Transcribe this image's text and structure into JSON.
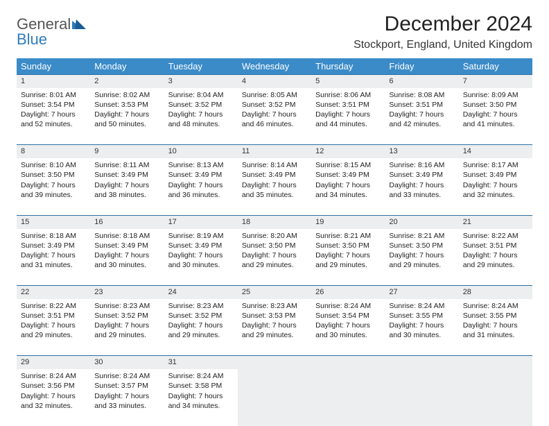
{
  "brand": {
    "general": "General",
    "blue": "Blue"
  },
  "title": "December 2024",
  "location": "Stockport, England, United Kingdom",
  "colors": {
    "header_bg": "#3b8bc9",
    "header_text": "#ffffff",
    "row_border": "#2f6fa3",
    "daynum_bg": "#eceeef",
    "logo_gray": "#555555",
    "logo_blue": "#2f7bbf"
  },
  "weekdays": [
    "Sunday",
    "Monday",
    "Tuesday",
    "Wednesday",
    "Thursday",
    "Friday",
    "Saturday"
  ],
  "weeks": [
    {
      "days": [
        {
          "n": "1",
          "sr": "Sunrise: 8:01 AM",
          "ss": "Sunset: 3:54 PM",
          "d1": "Daylight: 7 hours",
          "d2": "and 52 minutes."
        },
        {
          "n": "2",
          "sr": "Sunrise: 8:02 AM",
          "ss": "Sunset: 3:53 PM",
          "d1": "Daylight: 7 hours",
          "d2": "and 50 minutes."
        },
        {
          "n": "3",
          "sr": "Sunrise: 8:04 AM",
          "ss": "Sunset: 3:52 PM",
          "d1": "Daylight: 7 hours",
          "d2": "and 48 minutes."
        },
        {
          "n": "4",
          "sr": "Sunrise: 8:05 AM",
          "ss": "Sunset: 3:52 PM",
          "d1": "Daylight: 7 hours",
          "d2": "and 46 minutes."
        },
        {
          "n": "5",
          "sr": "Sunrise: 8:06 AM",
          "ss": "Sunset: 3:51 PM",
          "d1": "Daylight: 7 hours",
          "d2": "and 44 minutes."
        },
        {
          "n": "6",
          "sr": "Sunrise: 8:08 AM",
          "ss": "Sunset: 3:51 PM",
          "d1": "Daylight: 7 hours",
          "d2": "and 42 minutes."
        },
        {
          "n": "7",
          "sr": "Sunrise: 8:09 AM",
          "ss": "Sunset: 3:50 PM",
          "d1": "Daylight: 7 hours",
          "d2": "and 41 minutes."
        }
      ]
    },
    {
      "days": [
        {
          "n": "8",
          "sr": "Sunrise: 8:10 AM",
          "ss": "Sunset: 3:50 PM",
          "d1": "Daylight: 7 hours",
          "d2": "and 39 minutes."
        },
        {
          "n": "9",
          "sr": "Sunrise: 8:11 AM",
          "ss": "Sunset: 3:49 PM",
          "d1": "Daylight: 7 hours",
          "d2": "and 38 minutes."
        },
        {
          "n": "10",
          "sr": "Sunrise: 8:13 AM",
          "ss": "Sunset: 3:49 PM",
          "d1": "Daylight: 7 hours",
          "d2": "and 36 minutes."
        },
        {
          "n": "11",
          "sr": "Sunrise: 8:14 AM",
          "ss": "Sunset: 3:49 PM",
          "d1": "Daylight: 7 hours",
          "d2": "and 35 minutes."
        },
        {
          "n": "12",
          "sr": "Sunrise: 8:15 AM",
          "ss": "Sunset: 3:49 PM",
          "d1": "Daylight: 7 hours",
          "d2": "and 34 minutes."
        },
        {
          "n": "13",
          "sr": "Sunrise: 8:16 AM",
          "ss": "Sunset: 3:49 PM",
          "d1": "Daylight: 7 hours",
          "d2": "and 33 minutes."
        },
        {
          "n": "14",
          "sr": "Sunrise: 8:17 AM",
          "ss": "Sunset: 3:49 PM",
          "d1": "Daylight: 7 hours",
          "d2": "and 32 minutes."
        }
      ]
    },
    {
      "days": [
        {
          "n": "15",
          "sr": "Sunrise: 8:18 AM",
          "ss": "Sunset: 3:49 PM",
          "d1": "Daylight: 7 hours",
          "d2": "and 31 minutes."
        },
        {
          "n": "16",
          "sr": "Sunrise: 8:18 AM",
          "ss": "Sunset: 3:49 PM",
          "d1": "Daylight: 7 hours",
          "d2": "and 30 minutes."
        },
        {
          "n": "17",
          "sr": "Sunrise: 8:19 AM",
          "ss": "Sunset: 3:49 PM",
          "d1": "Daylight: 7 hours",
          "d2": "and 30 minutes."
        },
        {
          "n": "18",
          "sr": "Sunrise: 8:20 AM",
          "ss": "Sunset: 3:50 PM",
          "d1": "Daylight: 7 hours",
          "d2": "and 29 minutes."
        },
        {
          "n": "19",
          "sr": "Sunrise: 8:21 AM",
          "ss": "Sunset: 3:50 PM",
          "d1": "Daylight: 7 hours",
          "d2": "and 29 minutes."
        },
        {
          "n": "20",
          "sr": "Sunrise: 8:21 AM",
          "ss": "Sunset: 3:50 PM",
          "d1": "Daylight: 7 hours",
          "d2": "and 29 minutes."
        },
        {
          "n": "21",
          "sr": "Sunrise: 8:22 AM",
          "ss": "Sunset: 3:51 PM",
          "d1": "Daylight: 7 hours",
          "d2": "and 29 minutes."
        }
      ]
    },
    {
      "days": [
        {
          "n": "22",
          "sr": "Sunrise: 8:22 AM",
          "ss": "Sunset: 3:51 PM",
          "d1": "Daylight: 7 hours",
          "d2": "and 29 minutes."
        },
        {
          "n": "23",
          "sr": "Sunrise: 8:23 AM",
          "ss": "Sunset: 3:52 PM",
          "d1": "Daylight: 7 hours",
          "d2": "and 29 minutes."
        },
        {
          "n": "24",
          "sr": "Sunrise: 8:23 AM",
          "ss": "Sunset: 3:52 PM",
          "d1": "Daylight: 7 hours",
          "d2": "and 29 minutes."
        },
        {
          "n": "25",
          "sr": "Sunrise: 8:23 AM",
          "ss": "Sunset: 3:53 PM",
          "d1": "Daylight: 7 hours",
          "d2": "and 29 minutes."
        },
        {
          "n": "26",
          "sr": "Sunrise: 8:24 AM",
          "ss": "Sunset: 3:54 PM",
          "d1": "Daylight: 7 hours",
          "d2": "and 30 minutes."
        },
        {
          "n": "27",
          "sr": "Sunrise: 8:24 AM",
          "ss": "Sunset: 3:55 PM",
          "d1": "Daylight: 7 hours",
          "d2": "and 30 minutes."
        },
        {
          "n": "28",
          "sr": "Sunrise: 8:24 AM",
          "ss": "Sunset: 3:55 PM",
          "d1": "Daylight: 7 hours",
          "d2": "and 31 minutes."
        }
      ]
    },
    {
      "days": [
        {
          "n": "29",
          "sr": "Sunrise: 8:24 AM",
          "ss": "Sunset: 3:56 PM",
          "d1": "Daylight: 7 hours",
          "d2": "and 32 minutes."
        },
        {
          "n": "30",
          "sr": "Sunrise: 8:24 AM",
          "ss": "Sunset: 3:57 PM",
          "d1": "Daylight: 7 hours",
          "d2": "and 33 minutes."
        },
        {
          "n": "31",
          "sr": "Sunrise: 8:24 AM",
          "ss": "Sunset: 3:58 PM",
          "d1": "Daylight: 7 hours",
          "d2": "and 34 minutes."
        },
        {
          "empty": true
        },
        {
          "empty": true
        },
        {
          "empty": true
        },
        {
          "empty": true
        }
      ]
    }
  ]
}
